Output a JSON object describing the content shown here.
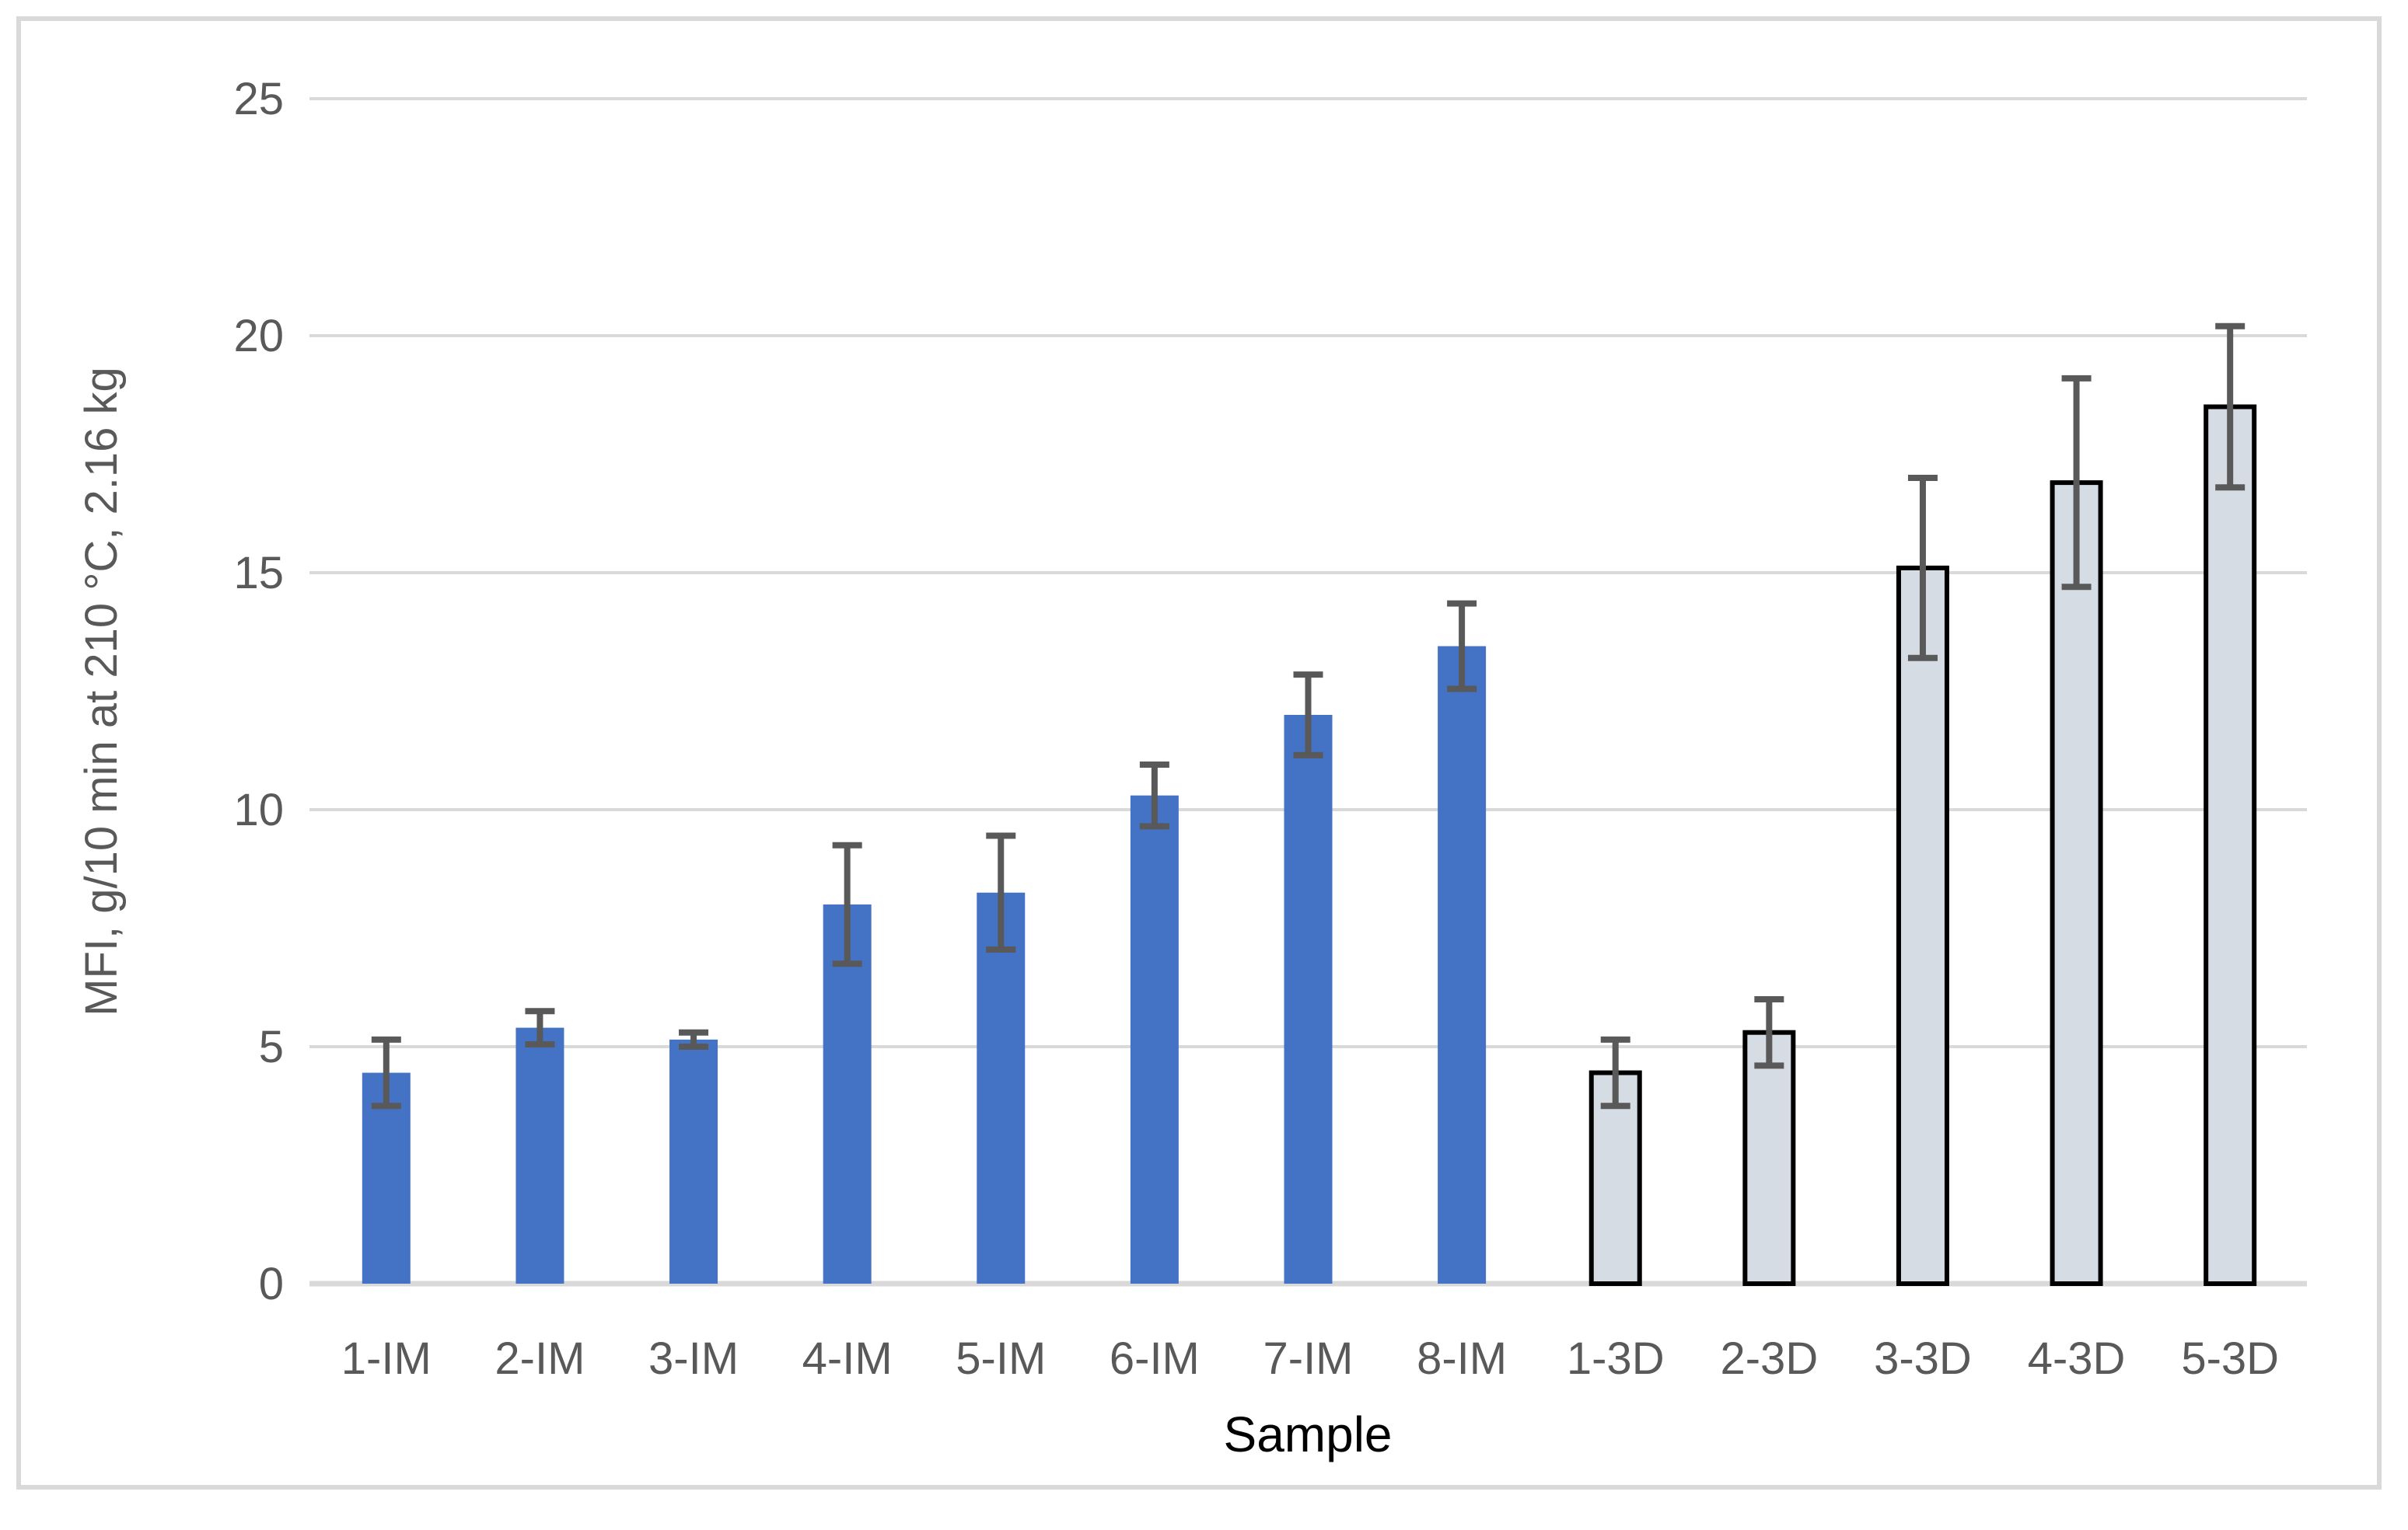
{
  "figure": {
    "background": "#FFFFFF",
    "border_color": "#D9D9D9"
  },
  "chart_data": {
    "type": "bar",
    "title": "",
    "xlabel": "Sample",
    "ylabel": "MFI, g/10 min at 210 °C, 2.16 kg",
    "ylim": [
      0,
      25
    ],
    "yticks": [
      0,
      5,
      10,
      15,
      20,
      25
    ],
    "grid": true,
    "legend": false,
    "error_bars": true,
    "categories": [
      "1-IM",
      "2-IM",
      "3-IM",
      "4-IM",
      "5-IM",
      "6-IM",
      "7-IM",
      "8-IM",
      "1-3D",
      "2-3D",
      "3-3D",
      "4-3D",
      "5-3D"
    ],
    "values": [
      4.45,
      5.4,
      5.15,
      8.0,
      8.25,
      10.3,
      12.0,
      13.45,
      4.45,
      5.3,
      15.1,
      16.9,
      18.5
    ],
    "errors": [
      0.7,
      0.35,
      0.15,
      1.25,
      1.2,
      0.65,
      0.85,
      0.9,
      0.7,
      0.7,
      1.9,
      2.2,
      1.7
    ],
    "bar_groups": [
      "IM",
      "IM",
      "IM",
      "IM",
      "IM",
      "IM",
      "IM",
      "IM",
      "3D",
      "3D",
      "3D",
      "3D",
      "3D"
    ],
    "colors": {
      "IM_fill": "#4472C4",
      "3D_fill": "#D6DCE4",
      "3D_outline": "#000000",
      "error_bar": "#595959",
      "gridline": "#D9D9D9",
      "axis_line": "#D9D9D9",
      "axis_text": "#595959",
      "xlabel_color": "#000000"
    }
  }
}
